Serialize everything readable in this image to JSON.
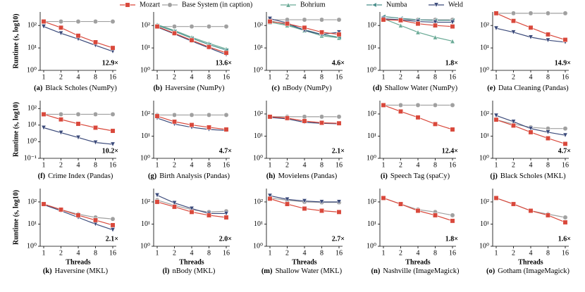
{
  "legend": [
    {
      "name": "Mozart",
      "color": "#d9483b",
      "marker": "square"
    },
    {
      "name": "Base System (in caption)",
      "color": "#a0a0a0",
      "marker": "circle"
    },
    {
      "name": "Bohrium",
      "color": "#6aaa96",
      "marker": "up"
    },
    {
      "name": "Numba",
      "color": "#4a8f8c",
      "marker": "left"
    },
    {
      "name": "Weld",
      "color": "#3b4a7a",
      "marker": "down"
    }
  ],
  "chart_data": [
    {
      "type": "line",
      "label": "(a)",
      "caption": "Black Scholes (NumPy)",
      "annotation": "12.9×",
      "ylabel": "Runtime (s, log10)",
      "log_y": true,
      "categories": [
        "1",
        "2",
        "4",
        "8",
        "16"
      ],
      "ylim": [
        1,
        400
      ],
      "yticks": [
        {
          "value": 1,
          "label": "10⁰"
        },
        {
          "value": 10,
          "label": "10¹"
        },
        {
          "value": 100,
          "label": "10²"
        }
      ],
      "series": [
        {
          "name": "Base System (in caption)",
          "color": "#a0a0a0",
          "marker": "circle",
          "values": [
            150,
            150,
            150,
            150,
            150
          ]
        },
        {
          "name": "Weld",
          "color": "#3b4a7a",
          "marker": "down",
          "values": [
            90,
            45,
            25,
            13,
            7
          ]
        },
        {
          "name": "Mozart",
          "color": "#d9483b",
          "marker": "square",
          "values": [
            150,
            80,
            35,
            18,
            10
          ]
        }
      ]
    },
    {
      "type": "line",
      "label": "(b)",
      "caption": "Haversine (NumPy)",
      "annotation": "13.6×",
      "log_y": true,
      "categories": [
        "1",
        "2",
        "4",
        "8",
        "16"
      ],
      "ylim": [
        1,
        400
      ],
      "yticks": [
        {
          "value": 1,
          "label": "10⁰"
        },
        {
          "value": 10,
          "label": "10¹"
        },
        {
          "value": 100,
          "label": "10²"
        }
      ],
      "series": [
        {
          "name": "Base System (in caption)",
          "color": "#a0a0a0",
          "marker": "circle",
          "values": [
            90,
            90,
            90,
            90,
            90
          ]
        },
        {
          "name": "Bohrium",
          "color": "#6aaa96",
          "marker": "up",
          "values": [
            110,
            60,
            30,
            16,
            9
          ]
        },
        {
          "name": "Numba",
          "color": "#4a8f8c",
          "marker": "left",
          "values": [
            100,
            55,
            27,
            14,
            8
          ]
        },
        {
          "name": "Weld",
          "color": "#3b4a7a",
          "marker": "down",
          "values": [
            85,
            42,
            20,
            10,
            5
          ]
        },
        {
          "name": "Mozart",
          "color": "#d9483b",
          "marker": "square",
          "values": [
            90,
            45,
            22,
            11,
            6
          ]
        }
      ]
    },
    {
      "type": "line",
      "label": "(c)",
      "caption": "nBody (NumPy)",
      "annotation": "4.6×",
      "log_y": true,
      "categories": [
        "1",
        "2",
        "4",
        "8",
        "16"
      ],
      "ylim": [
        1,
        400
      ],
      "yticks": [
        {
          "value": 1,
          "label": "10⁰"
        },
        {
          "value": 10,
          "label": "10¹"
        },
        {
          "value": 100,
          "label": "10²"
        }
      ],
      "series": [
        {
          "name": "Base System (in caption)",
          "color": "#a0a0a0",
          "marker": "circle",
          "values": [
            180,
            180,
            180,
            180,
            180
          ]
        },
        {
          "name": "Bohrium",
          "color": "#6aaa96",
          "marker": "up",
          "values": [
            140,
            100,
            60,
            35,
            28
          ]
        },
        {
          "name": "Numba",
          "color": "#4a8f8c",
          "marker": "left",
          "values": [
            160,
            110,
            65,
            40,
            30
          ]
        },
        {
          "name": "Weld",
          "color": "#3b4a7a",
          "marker": "down",
          "values": [
            200,
            130,
            60,
            40,
            50
          ]
        },
        {
          "name": "Mozart",
          "color": "#d9483b",
          "marker": "square",
          "values": [
            150,
            120,
            80,
            50,
            40
          ]
        }
      ]
    },
    {
      "type": "line",
      "label": "(d)",
      "caption": "Shallow Water (NumPy)",
      "annotation": "1.8×",
      "log_y": true,
      "categories": [
        "1",
        "2",
        "4",
        "8",
        "16"
      ],
      "ylim": [
        1,
        400
      ],
      "yticks": [
        {
          "value": 1,
          "label": "10⁰"
        },
        {
          "value": 10,
          "label": "10¹"
        },
        {
          "value": 100,
          "label": "10²"
        }
      ],
      "series": [
        {
          "name": "Base System (in caption)",
          "color": "#a0a0a0",
          "marker": "circle",
          "values": [
            180,
            180,
            180,
            180,
            180
          ]
        },
        {
          "name": "Bohrium",
          "color": "#6aaa96",
          "marker": "up",
          "values": [
            200,
            100,
            50,
            30,
            20
          ]
        },
        {
          "name": "Numba",
          "color": "#4a8f8c",
          "marker": "left",
          "values": [
            250,
            210,
            180,
            170,
            170
          ]
        },
        {
          "name": "Weld",
          "color": "#3b4a7a",
          "marker": "down",
          "values": [
            200,
            180,
            150,
            140,
            140
          ]
        },
        {
          "name": "Mozart",
          "color": "#d9483b",
          "marker": "square",
          "values": [
            180,
            170,
            120,
            100,
            90
          ]
        }
      ]
    },
    {
      "type": "line",
      "label": "(e)",
      "caption": "Data Cleaning (Pandas)",
      "annotation": "14.9×",
      "log_y": true,
      "categories": [
        "1",
        "2",
        "4",
        "8",
        "16"
      ],
      "ylim": [
        1,
        400
      ],
      "yticks": [
        {
          "value": 1,
          "label": "10⁰"
        },
        {
          "value": 10,
          "label": "10¹"
        },
        {
          "value": 100,
          "label": "10²"
        }
      ],
      "series": [
        {
          "name": "Base System (in caption)",
          "color": "#a0a0a0",
          "marker": "circle",
          "values": [
            350,
            350,
            350,
            350,
            350
          ]
        },
        {
          "name": "Weld",
          "color": "#3b4a7a",
          "marker": "down",
          "values": [
            75,
            50,
            30,
            22,
            18
          ]
        },
        {
          "name": "Mozart",
          "color": "#d9483b",
          "marker": "square",
          "values": [
            350,
            160,
            80,
            40,
            23
          ]
        }
      ]
    },
    {
      "type": "line",
      "label": "(f)",
      "caption": "Crime Index (Pandas)",
      "annotation": "10.2×",
      "ylabel": "Runtime (s, log10)",
      "log_y": true,
      "categories": [
        "1",
        "2",
        "4",
        "8",
        "16"
      ],
      "ylim": [
        0.1,
        300
      ],
      "yticks": [
        {
          "value": 0.1,
          "label": "10⁻¹"
        },
        {
          "value": 1,
          "label": "10⁰"
        },
        {
          "value": 10,
          "label": "10¹"
        },
        {
          "value": 100,
          "label": "10²"
        }
      ],
      "series": [
        {
          "name": "Base System (in caption)",
          "color": "#a0a0a0",
          "marker": "circle",
          "values": [
            45,
            45,
            45,
            45,
            45
          ]
        },
        {
          "name": "Weld",
          "color": "#3b4a7a",
          "marker": "down",
          "values": [
            7,
            3.5,
            1.8,
            0.9,
            0.7
          ]
        },
        {
          "name": "Mozart",
          "color": "#d9483b",
          "marker": "square",
          "values": [
            45,
            22,
            12,
            7,
            4.5
          ]
        }
      ]
    },
    {
      "type": "line",
      "label": "(g)",
      "caption": "Birth Analysis (Pandas)",
      "annotation": "4.7×",
      "log_y": true,
      "categories": [
        "1",
        "2",
        "4",
        "8",
        "16"
      ],
      "ylim": [
        1,
        400
      ],
      "yticks": [
        {
          "value": 1,
          "label": "10⁰"
        },
        {
          "value": 10,
          "label": "10¹"
        },
        {
          "value": 100,
          "label": "10²"
        }
      ],
      "series": [
        {
          "name": "Base System (in caption)",
          "color": "#a0a0a0",
          "marker": "circle",
          "values": [
            90,
            90,
            90,
            90,
            90
          ]
        },
        {
          "name": "Weld",
          "color": "#3b4a7a",
          "marker": "down",
          "values": [
            65,
            35,
            25,
            20,
            18
          ]
        },
        {
          "name": "Mozart",
          "color": "#d9483b",
          "marker": "square",
          "values": [
            80,
            45,
            32,
            25,
            20
          ]
        }
      ]
    },
    {
      "type": "line",
      "label": "(h)",
      "caption": "Movielens (Pandas)",
      "annotation": "2.1×",
      "log_y": true,
      "categories": [
        "1",
        "2",
        "4",
        "8",
        "16"
      ],
      "ylim": [
        1,
        400
      ],
      "yticks": [
        {
          "value": 1,
          "label": "10⁰"
        },
        {
          "value": 10,
          "label": "10¹"
        },
        {
          "value": 100,
          "label": "10²"
        }
      ],
      "series": [
        {
          "name": "Base System (in caption)",
          "color": "#a0a0a0",
          "marker": "circle",
          "values": [
            75,
            75,
            75,
            75,
            75
          ]
        },
        {
          "name": "Weld",
          "color": "#3b4a7a",
          "marker": "down",
          "values": [
            70,
            60,
            42,
            38,
            36
          ]
        },
        {
          "name": "Mozart",
          "color": "#d9483b",
          "marker": "square",
          "values": [
            75,
            65,
            48,
            40,
            38
          ]
        }
      ]
    },
    {
      "type": "line",
      "label": "(i)",
      "caption": "Speech Tag (spaCy)",
      "annotation": "12.4×",
      "log_y": true,
      "categories": [
        "1",
        "2",
        "4",
        "8",
        "16"
      ],
      "ylim": [
        1,
        400
      ],
      "yticks": [
        {
          "value": 1,
          "label": "10⁰"
        },
        {
          "value": 10,
          "label": "10¹"
        },
        {
          "value": 100,
          "label": "10²"
        }
      ],
      "series": [
        {
          "name": "Base System (in caption)",
          "color": "#a0a0a0",
          "marker": "circle",
          "values": [
            250,
            250,
            250,
            250,
            250
          ]
        },
        {
          "name": "Mozart",
          "color": "#d9483b",
          "marker": "square",
          "values": [
            250,
            130,
            70,
            35,
            20
          ]
        }
      ]
    },
    {
      "type": "line",
      "label": "(j)",
      "caption": "Black Scholes (MKL)",
      "annotation": "4.7×",
      "log_y": true,
      "categories": [
        "1",
        "2",
        "4",
        "8",
        "16"
      ],
      "ylim": [
        1,
        400
      ],
      "yticks": [
        {
          "value": 1,
          "label": "10⁰"
        },
        {
          "value": 10,
          "label": "10¹"
        },
        {
          "value": 100,
          "label": "10²"
        }
      ],
      "series": [
        {
          "name": "Base System (in caption)",
          "color": "#a0a0a0",
          "marker": "circle",
          "values": [
            55,
            35,
            25,
            22,
            22
          ]
        },
        {
          "name": "Weld",
          "color": "#3b4a7a",
          "marker": "down",
          "values": [
            85,
            45,
            22,
            15,
            11
          ]
        },
        {
          "name": "Mozart",
          "color": "#d9483b",
          "marker": "square",
          "values": [
            55,
            30,
            15,
            8,
            4.5
          ]
        }
      ]
    },
    {
      "type": "line",
      "label": "(k)",
      "caption": "Haversine (MKL)",
      "annotation": "2.1×",
      "ylabel": "Runtime (s, log10)",
      "xlabel": "Threads",
      "log_y": true,
      "categories": [
        "1",
        "2",
        "4",
        "8",
        "16"
      ],
      "ylim": [
        1,
        400
      ],
      "yticks": [
        {
          "value": 1,
          "label": "10⁰"
        },
        {
          "value": 10,
          "label": "10¹"
        },
        {
          "value": 100,
          "label": "10²"
        }
      ],
      "series": [
        {
          "name": "Base System (in caption)",
          "color": "#a0a0a0",
          "marker": "circle",
          "values": [
            80,
            45,
            28,
            20,
            17
          ]
        },
        {
          "name": "Weld",
          "color": "#3b4a7a",
          "marker": "down",
          "values": [
            75,
            40,
            20,
            10,
            5.5
          ]
        },
        {
          "name": "Mozart",
          "color": "#d9483b",
          "marker": "square",
          "values": [
            80,
            45,
            25,
            15,
            9
          ]
        }
      ]
    },
    {
      "type": "line",
      "label": "(l)",
      "caption": "nBody (MKL)",
      "annotation": "2.0×",
      "xlabel": "Threads",
      "log_y": true,
      "categories": [
        "1",
        "2",
        "4",
        "8",
        "16"
      ],
      "ylim": [
        1,
        400
      ],
      "yticks": [
        {
          "value": 1,
          "label": "10⁰"
        },
        {
          "value": 10,
          "label": "10¹"
        },
        {
          "value": 100,
          "label": "10²"
        }
      ],
      "series": [
        {
          "name": "Base System (in caption)",
          "color": "#a0a0a0",
          "marker": "circle",
          "values": [
            120,
            70,
            45,
            35,
            38
          ]
        },
        {
          "name": "Weld",
          "color": "#3b4a7a",
          "marker": "down",
          "values": [
            200,
            90,
            50,
            30,
            30
          ]
        },
        {
          "name": "Mozart",
          "color": "#d9483b",
          "marker": "square",
          "values": [
            100,
            60,
            35,
            25,
            20
          ]
        }
      ]
    },
    {
      "type": "line",
      "label": "(m)",
      "caption": "Shallow Water (MKL)",
      "annotation": "2.7×",
      "xlabel": "Threads",
      "log_y": true,
      "categories": [
        "1",
        "2",
        "4",
        "8",
        "16"
      ],
      "ylim": [
        1,
        400
      ],
      "yticks": [
        {
          "value": 1,
          "label": "10⁰"
        },
        {
          "value": 10,
          "label": "10¹"
        },
        {
          "value": 100,
          "label": "10²"
        }
      ],
      "series": [
        {
          "name": "Base System (in caption)",
          "color": "#a0a0a0",
          "marker": "circle",
          "values": [
            150,
            120,
            100,
            95,
            95
          ]
        },
        {
          "name": "Weld",
          "color": "#3b4a7a",
          "marker": "down",
          "values": [
            190,
            130,
            110,
            100,
            100
          ]
        },
        {
          "name": "Mozart",
          "color": "#d9483b",
          "marker": "square",
          "values": [
            140,
            80,
            50,
            40,
            35
          ]
        }
      ]
    },
    {
      "type": "line",
      "label": "(n)",
      "caption": "Nashville (ImageMagick)",
      "annotation": "1.8×",
      "xlabel": "Threads",
      "log_y": true,
      "categories": [
        "1",
        "2",
        "4",
        "8",
        "16"
      ],
      "ylim": [
        1,
        400
      ],
      "yticks": [
        {
          "value": 1,
          "label": "10⁰"
        },
        {
          "value": 10,
          "label": "10¹"
        },
        {
          "value": 100,
          "label": "10²"
        }
      ],
      "series": [
        {
          "name": "Base System (in caption)",
          "color": "#a0a0a0",
          "marker": "circle",
          "values": [
            150,
            80,
            45,
            35,
            25
          ]
        },
        {
          "name": "Mozart",
          "color": "#d9483b",
          "marker": "square",
          "values": [
            150,
            80,
            40,
            25,
            14
          ]
        }
      ]
    },
    {
      "type": "line",
      "label": "(o)",
      "caption": "Gotham (ImageMagick)",
      "annotation": "1.6×",
      "xlabel": "Threads",
      "log_y": true,
      "categories": [
        "1",
        "2",
        "4",
        "8",
        "16"
      ],
      "ylim": [
        1,
        400
      ],
      "yticks": [
        {
          "value": 1,
          "label": "10⁰"
        },
        {
          "value": 10,
          "label": "10¹"
        },
        {
          "value": 100,
          "label": "10²"
        }
      ],
      "series": [
        {
          "name": "Base System (in caption)",
          "color": "#a0a0a0",
          "marker": "circle",
          "values": [
            150,
            80,
            40,
            28,
            20
          ]
        },
        {
          "name": "Mozart",
          "color": "#d9483b",
          "marker": "square",
          "values": [
            150,
            80,
            40,
            25,
            12
          ]
        }
      ]
    }
  ]
}
